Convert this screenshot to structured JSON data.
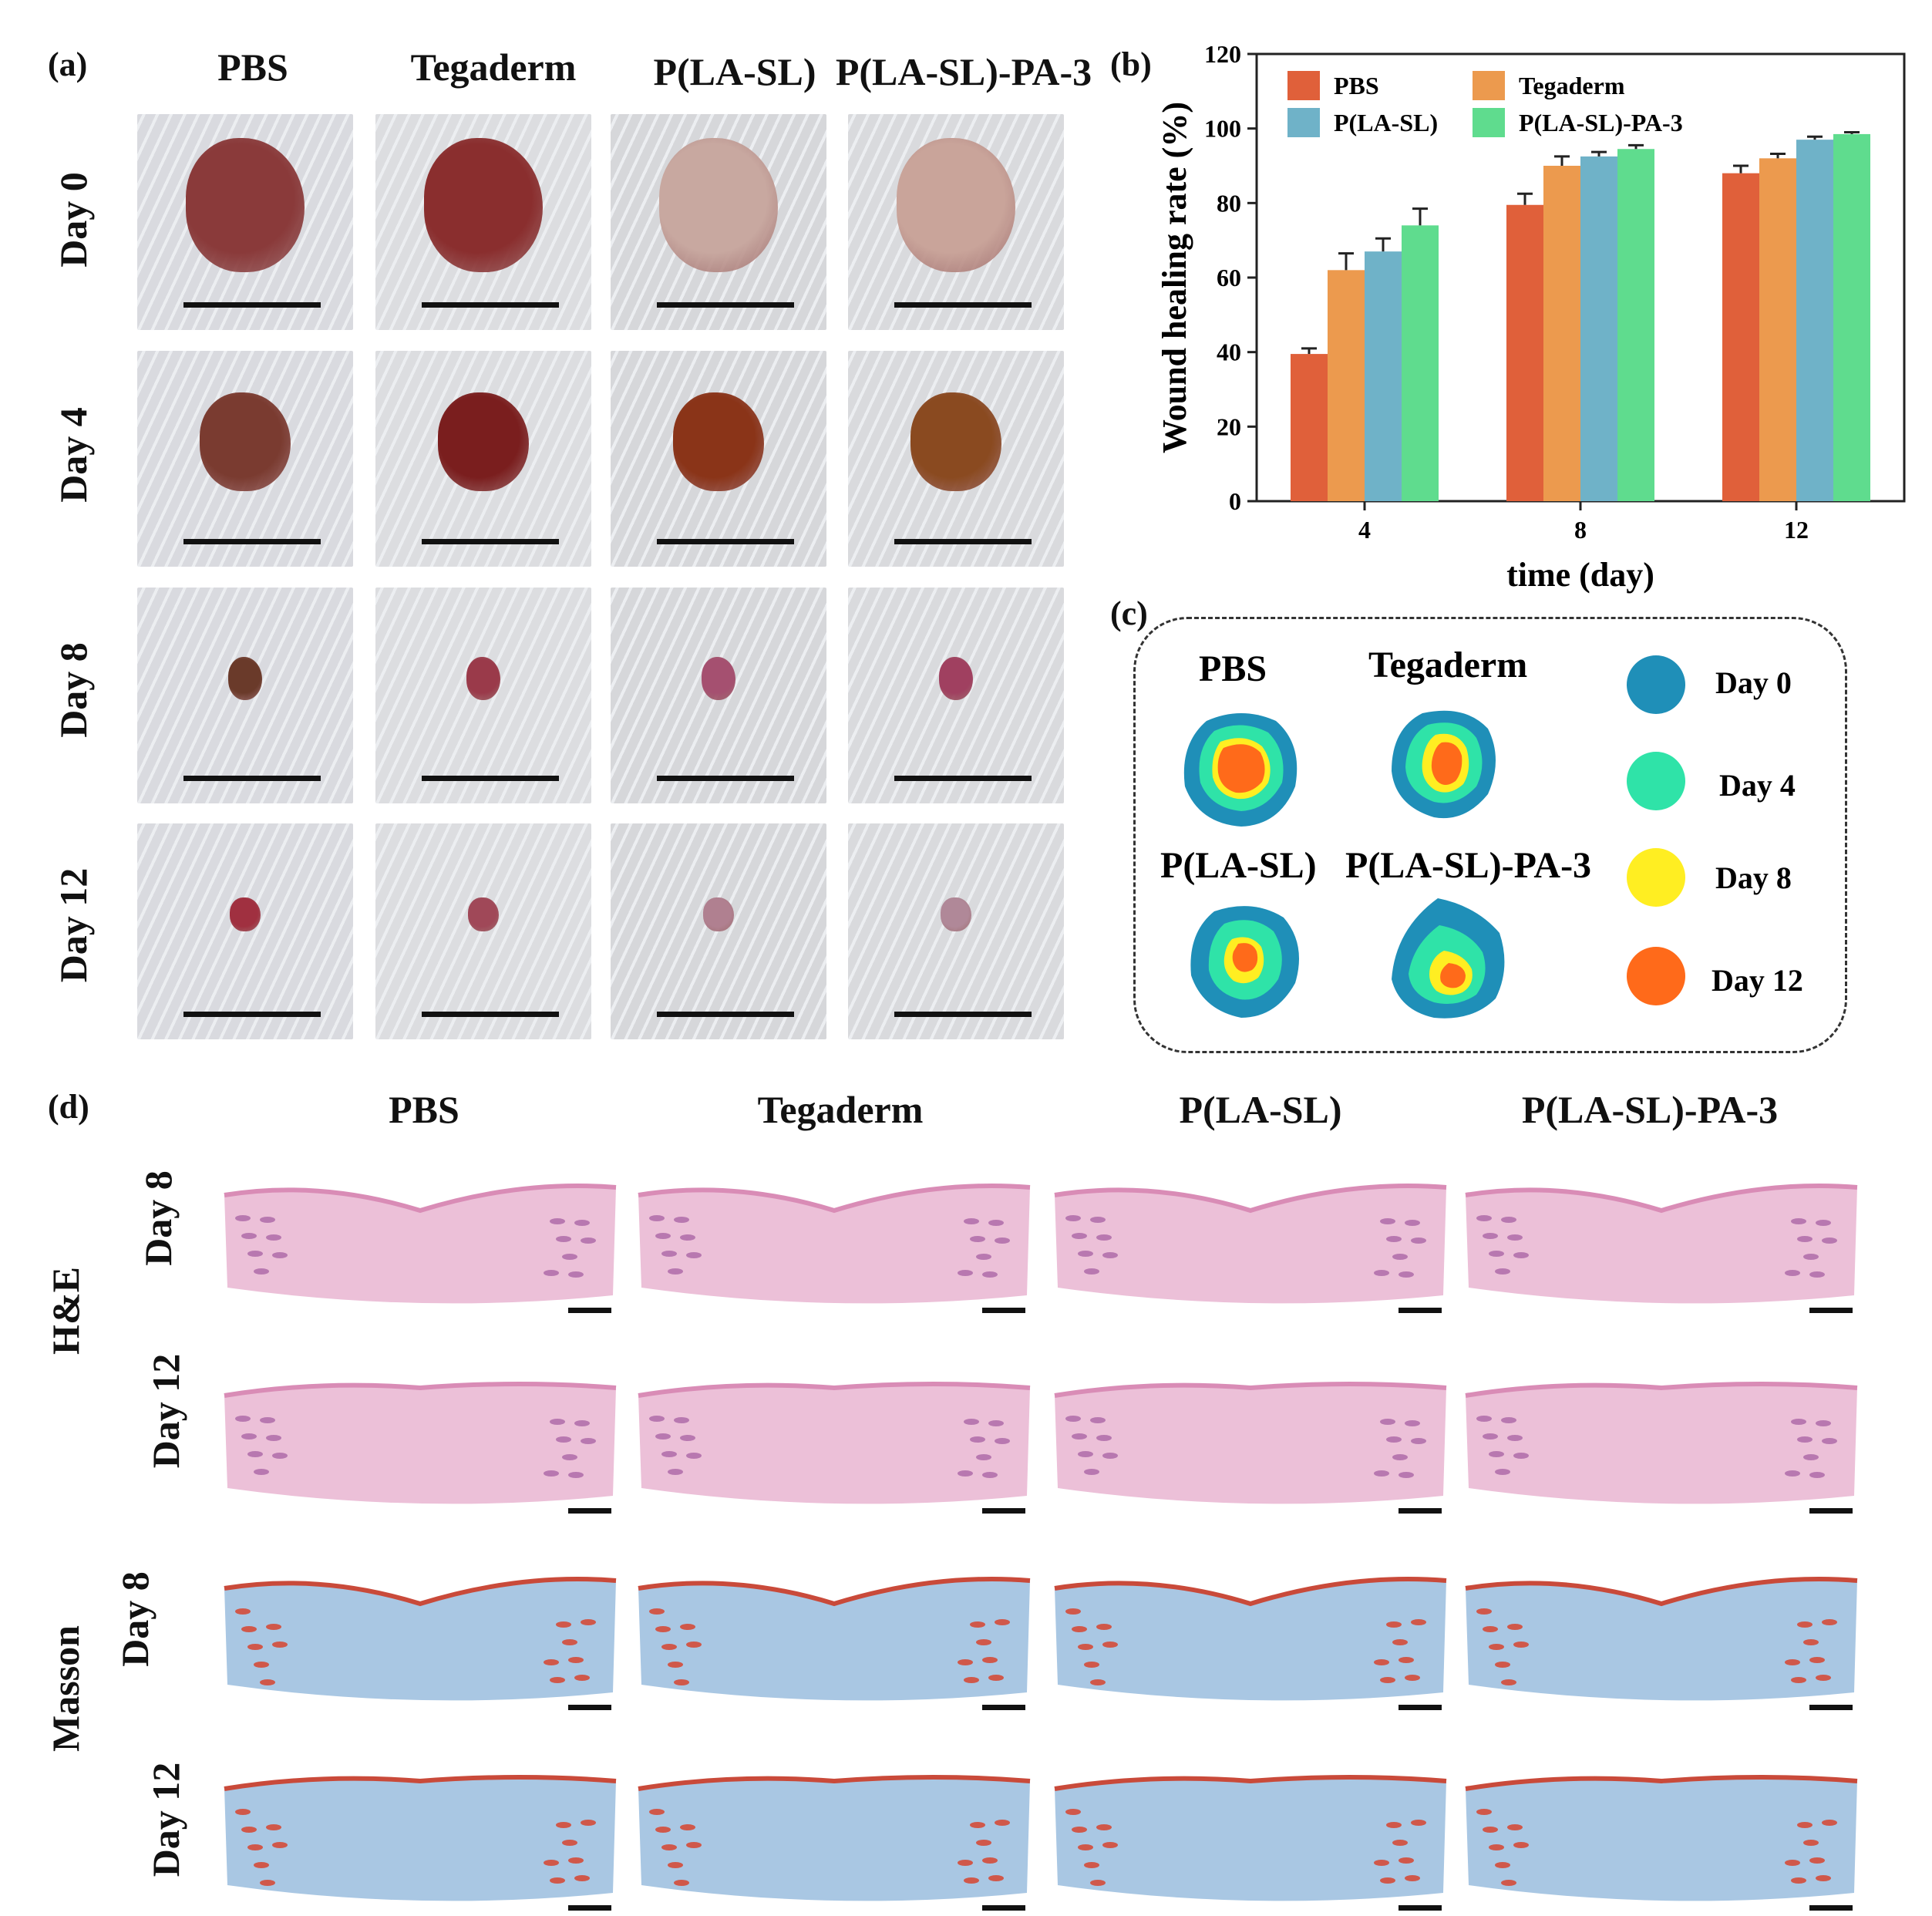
{
  "panels": {
    "a": "(a)",
    "b": "(b)",
    "c": "(c)",
    "d": "(d)"
  },
  "groups": [
    "PBS",
    "Tegaderm",
    "P(LA-SL)",
    "P(LA-SL)-PA-3"
  ],
  "days_a": [
    "Day 0",
    "Day 4",
    "Day 8",
    "Day 12"
  ],
  "days_d": [
    "Day 8",
    "Day 12"
  ],
  "stains": [
    "H&E",
    "Masson"
  ],
  "chart_data": {
    "type": "bar",
    "title": "",
    "xlabel": "time (day)",
    "ylabel": "Wound healing rate (%)",
    "categories": [
      "4",
      "8",
      "12"
    ],
    "ylim": [
      0,
      120
    ],
    "yticks": [
      "0",
      "20",
      "40",
      "60",
      "80",
      "100",
      "120"
    ],
    "legend_position": "top-left",
    "series": [
      {
        "name": "PBS",
        "color": "#e0603a",
        "values": [
          39.5,
          79.5,
          88
        ],
        "errors": [
          1.5,
          3,
          2
        ]
      },
      {
        "name": "Tegaderm",
        "color": "#ec9a4e",
        "values": [
          62,
          90,
          92
        ],
        "errors": [
          4.5,
          2.5,
          1.2
        ]
      },
      {
        "name": "P(LA-SL)",
        "color": "#6fb2c8",
        "values": [
          67,
          92.5,
          97
        ],
        "errors": [
          3.5,
          1.2,
          0.8
        ]
      },
      {
        "name": "P(LA-SL)-PA-3",
        "color": "#5fdc8e",
        "values": [
          74,
          94.5,
          98.5
        ],
        "errors": [
          4.5,
          1,
          0.5
        ]
      }
    ]
  },
  "panel_c": {
    "legend": [
      {
        "label": "Day 0",
        "color": "#1f8fb8"
      },
      {
        "label": "Day 4",
        "color": "#2fe3a8"
      },
      {
        "label": "Day 8",
        "color": "#ffee22"
      },
      {
        "label": "Day 12",
        "color": "#ff6a1a"
      }
    ]
  }
}
